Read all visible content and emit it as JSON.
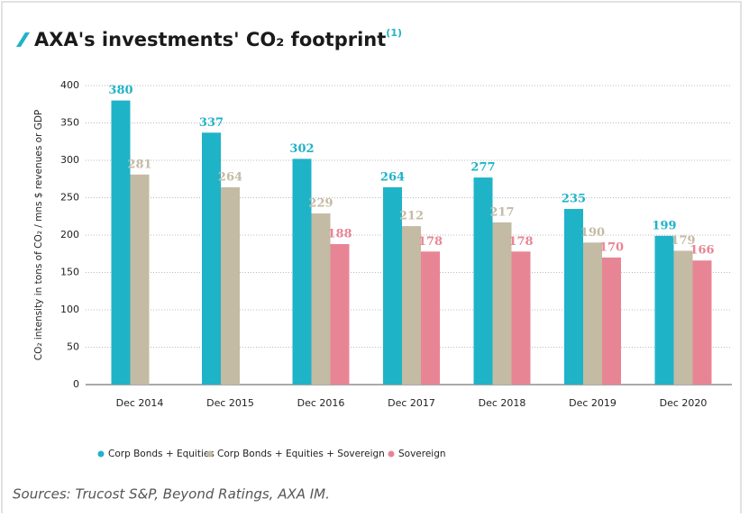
{
  "chart_data": {
    "type": "bar",
    "title": "AXA's investments' CO₂ footprint",
    "title_note": "(1)",
    "ylabel": "CO₂ intensity in tons of CO₂ / mns $ revenues or GDP",
    "categories": [
      "Dec 2014",
      "Dec 2015",
      "Dec 2016",
      "Dec 2017",
      "Dec 2018",
      "Dec 2019",
      "Dec 2020"
    ],
    "series": [
      {
        "name": "Corp Bonds + Equities",
        "color": "#1fb3c8",
        "values": [
          380,
          337,
          302,
          264,
          277,
          235,
          199
        ]
      },
      {
        "name": "Corp Bonds + Equities + Sovereign",
        "color": "#c3bba3",
        "values": [
          281,
          264,
          229,
          212,
          217,
          190,
          179
        ]
      },
      {
        "name": "Sovereign",
        "color": "#e88595",
        "values": [
          null,
          null,
          188,
          178,
          178,
          170,
          166
        ]
      }
    ],
    "ylim": [
      0,
      400
    ],
    "yticks": [
      0,
      50,
      100,
      150,
      200,
      250,
      300,
      350,
      400
    ],
    "grid": true,
    "legend": "bottom",
    "source": "Sources: Trucost S&P, Beyond Ratings, AXA IM."
  }
}
